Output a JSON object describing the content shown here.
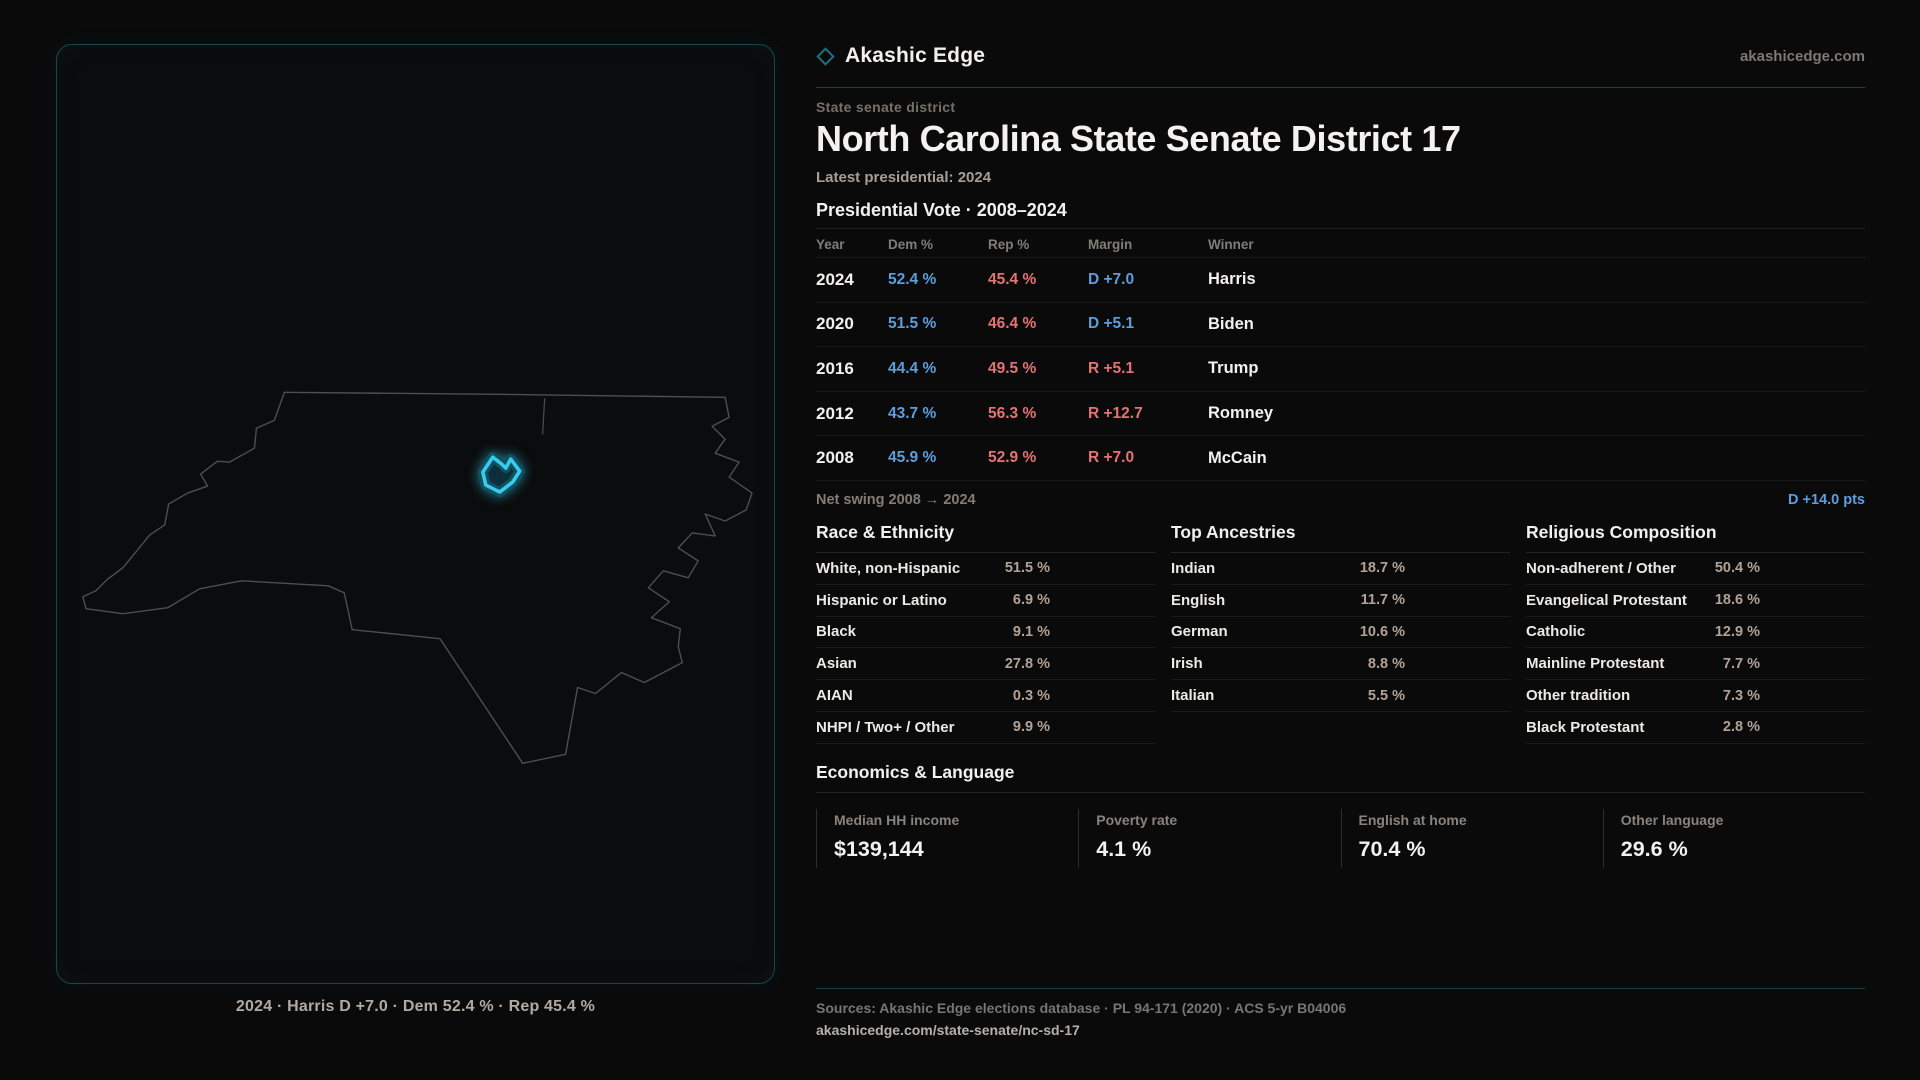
{
  "brand": {
    "name": "Akashic Edge",
    "domain": "akashicedge.com"
  },
  "page": {
    "kicker": "State senate district",
    "title": "North Carolina State Senate District 17",
    "subtitle": "Latest presidential: 2024"
  },
  "map": {
    "caption": "2024 · Harris D +7.0 · Dem 52.4 % · Rep 45.4 %"
  },
  "vote": {
    "heading": "Presidential Vote · 2008–2024",
    "columns": [
      "Year",
      "Dem %",
      "Rep %",
      "Margin",
      "Winner"
    ],
    "rows": [
      {
        "year": "2024",
        "dem": "52.4 %",
        "rep": "45.4 %",
        "margin": "D +7.0",
        "party": "D",
        "winner": "Harris"
      },
      {
        "year": "2020",
        "dem": "51.5 %",
        "rep": "46.4 %",
        "margin": "D +5.1",
        "party": "D",
        "winner": "Biden"
      },
      {
        "year": "2016",
        "dem": "44.4 %",
        "rep": "49.5 %",
        "margin": "R +5.1",
        "party": "R",
        "winner": "Trump"
      },
      {
        "year": "2012",
        "dem": "43.7 %",
        "rep": "56.3 %",
        "margin": "R +12.7",
        "party": "R",
        "winner": "Romney"
      },
      {
        "year": "2008",
        "dem": "45.9 %",
        "rep": "52.9 %",
        "margin": "R +7.0",
        "party": "R",
        "winner": "McCain"
      }
    ],
    "net_swing_label": "Net swing 2008 → 2024",
    "net_swing_value": "D +14.0 pts"
  },
  "demo": [
    {
      "heading": "Race & Ethnicity",
      "rows": [
        {
          "label": "White, non-Hispanic",
          "value": "51.5 %",
          "pct": 51.5
        },
        {
          "label": "Hispanic or Latino",
          "value": "6.9 %",
          "pct": 6.9
        },
        {
          "label": "Black",
          "value": "9.1 %",
          "pct": 9.1
        },
        {
          "label": "Asian",
          "value": "27.8 %",
          "pct": 27.8
        },
        {
          "label": "AIAN",
          "value": "0.3 %",
          "pct": 0.3
        },
        {
          "label": "NHPI / Two+ / Other",
          "value": "9.9 %",
          "pct": 9.9
        }
      ]
    },
    {
      "heading": "Top Ancestries",
      "rows": [
        {
          "label": "Indian",
          "value": "18.7 %",
          "pct": 18.7
        },
        {
          "label": "English",
          "value": "11.7 %",
          "pct": 11.7
        },
        {
          "label": "German",
          "value": "10.6 %",
          "pct": 10.6
        },
        {
          "label": "Irish",
          "value": "8.8 %",
          "pct": 8.8
        },
        {
          "label": "Italian",
          "value": "5.5 %",
          "pct": 5.5
        }
      ]
    },
    {
      "heading": "Religious Composition",
      "rows": [
        {
          "label": "Non-adherent / Other",
          "value": "50.4 %",
          "pct": 50.4
        },
        {
          "label": "Evangelical Protestant",
          "value": "18.6 %",
          "pct": 18.6
        },
        {
          "label": "Catholic",
          "value": "12.9 %",
          "pct": 12.9
        },
        {
          "label": "Mainline Protestant",
          "value": "7.7 %",
          "pct": 7.7
        },
        {
          "label": "Other tradition",
          "value": "7.3 %",
          "pct": 7.3
        },
        {
          "label": "Black Protestant",
          "value": "2.8 %",
          "pct": 2.8
        }
      ]
    }
  ],
  "econ": {
    "heading": "Economics & Language",
    "stats": [
      {
        "label": "Median HH income",
        "value": "$139,144"
      },
      {
        "label": "Poverty rate",
        "value": "4.1 %"
      },
      {
        "label": "English at home",
        "value": "70.4 %"
      },
      {
        "label": "Other language",
        "value": "29.6 %"
      }
    ]
  },
  "footer": {
    "sources": "Sources: Akashic Edge elections database · PL 94-171 (2020) · ACS 5-yr B04006",
    "url": "akashicedge.com/state-senate/nc-sd-17"
  },
  "colors": {
    "dem": "#5d9edc",
    "rep": "#e57373",
    "accent": "#30c6e8",
    "bar_fill": "#c9c6c2"
  }
}
